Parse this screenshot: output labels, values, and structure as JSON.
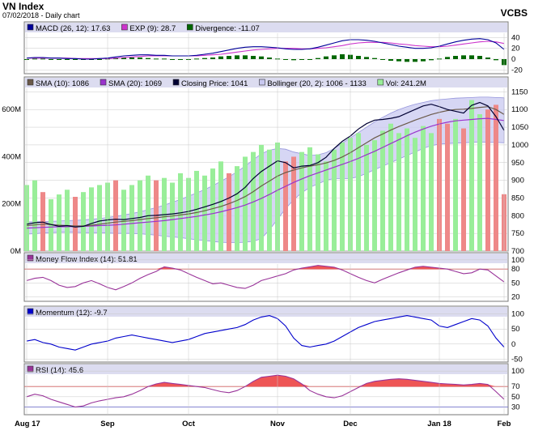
{
  "header": {
    "title": "VN Index",
    "subtitle": "07/02/2018 - Daily chart",
    "source": "VCBS"
  },
  "colors": {
    "background": "#ffffff",
    "legend_band": "#dcdcf0",
    "grid": "#c8c8c8",
    "price": "#000033",
    "sma10": "#6b5a4a",
    "sma20": "#9933cc",
    "bollinger_fill": "#c8c8f0",
    "bollinger_line": "#9696dc",
    "vol_up": "#99ee99",
    "vol_down": "#ee8888",
    "macd": "#000099",
    "exp": "#cc33cc",
    "divergence": "#006600",
    "mfi_line": "#993399",
    "mfi_fill": "#ee5555",
    "mfi_ref": "#cc6666",
    "momentum": "#0000cc",
    "rsi_line": "#993399",
    "rsi_fill": "#ee5555",
    "rsi_ref70": "#cc6666",
    "rsi_ref30": "#6666cc"
  },
  "chart_data": {
    "type": "line",
    "x_labels": [
      "Aug 17",
      "Sep",
      "Oct",
      "Nov",
      "Dec",
      "Jan 18",
      "Feb"
    ],
    "panels": {
      "macd": {
        "legend": [
          {
            "key": "macd",
            "text": "MACD (26, 12): 17.63"
          },
          {
            "key": "exp",
            "text": "EXP (9): 28.7"
          },
          {
            "key": "divergence",
            "text": "Divergence: -11.07"
          }
        ],
        "y_ticks": [
          "40",
          "20",
          "0",
          "-20"
        ],
        "ylim": [
          -27,
          48
        ],
        "macd": [
          2,
          3,
          3,
          2,
          2,
          1,
          1,
          0,
          0,
          1,
          2,
          4,
          6,
          7,
          8,
          8,
          7,
          7,
          6,
          6,
          6,
          7,
          9,
          11,
          14,
          17,
          20,
          22,
          23,
          23,
          22,
          21,
          19,
          18,
          18,
          19,
          22,
          26,
          30,
          34,
          36,
          36,
          35,
          33,
          30,
          27,
          24,
          22,
          20,
          20,
          21,
          24,
          28,
          32,
          35,
          37,
          38,
          36,
          30,
          18
        ],
        "exp": [
          2,
          2,
          2,
          2,
          2,
          2,
          1,
          1,
          1,
          1,
          1,
          2,
          3,
          4,
          5,
          6,
          6,
          6,
          6,
          6,
          6,
          6,
          7,
          8,
          9,
          11,
          13,
          15,
          17,
          18,
          19,
          20,
          20,
          20,
          19,
          19,
          20,
          21,
          23,
          25,
          28,
          30,
          31,
          31,
          31,
          30,
          28,
          27,
          25,
          24,
          23,
          23,
          24,
          26,
          28,
          30,
          32,
          33,
          32,
          29
        ],
        "divergence": [
          0,
          1,
          1,
          0,
          0,
          -1,
          0,
          -1,
          -1,
          0,
          1,
          2,
          3,
          3,
          3,
          2,
          1,
          1,
          0,
          0,
          0,
          1,
          2,
          3,
          5,
          6,
          7,
          7,
          6,
          5,
          3,
          1,
          -1,
          -2,
          -1,
          0,
          2,
          5,
          7,
          9,
          8,
          6,
          4,
          2,
          -1,
          -3,
          -4,
          -5,
          -5,
          -4,
          -2,
          1,
          4,
          6,
          7,
          7,
          6,
          3,
          -2,
          -11
        ]
      },
      "price": {
        "legend": [
          {
            "key": "sma10",
            "text": "SMA (10): 1086"
          },
          {
            "key": "sma20",
            "text": "SMA (20): 1069"
          },
          {
            "key": "price",
            "text": "Closing Price: 1041"
          },
          {
            "key": "bollinger",
            "text": "Bollinger (20, 2): 1006 - 1133"
          },
          {
            "key": "vol",
            "text": "Vol: 241.2M"
          }
        ],
        "y_ticks": [
          "1150",
          "1100",
          "1050",
          "1000",
          "950",
          "900",
          "850",
          "800",
          "750",
          "700"
        ],
        "ylim": [
          700,
          1160
        ],
        "vol_ticks": [
          "600M",
          "400M",
          "200M",
          "0M"
        ],
        "vol_lim": [
          0,
          690
        ],
        "close": [
          776,
          780,
          782,
          775,
          770,
          772,
          768,
          770,
          778,
          785,
          788,
          790,
          789,
          792,
          795,
          800,
          801,
          803,
          805,
          808,
          812,
          818,
          825,
          832,
          840,
          850,
          862,
          880,
          905,
          925,
          940,
          955,
          950,
          935,
          940,
          942,
          950,
          965,
          990,
          1010,
          1025,
          1045,
          1060,
          1070,
          1072,
          1075,
          1080,
          1090,
          1100,
          1110,
          1115,
          1108,
          1100,
          1095,
          1090,
          1112,
          1120,
          1110,
          1080,
          1041
        ],
        "sma10": [
          772,
          774,
          776,
          775,
          773,
          772,
          771,
          771,
          773,
          776,
          779,
          782,
          784,
          786,
          789,
          792,
          794,
          797,
          799,
          802,
          805,
          809,
          814,
          820,
          826,
          834,
          843,
          854,
          868,
          884,
          898,
          912,
          922,
          929,
          935,
          940,
          944,
          949,
          956,
          966,
          978,
          992,
          1006,
          1020,
          1031,
          1042,
          1052,
          1061,
          1070,
          1078,
          1086,
          1092,
          1097,
          1100,
          1101,
          1103,
          1106,
          1108,
          1100,
          1086
        ],
        "sma20": [
          765,
          766,
          767,
          768,
          769,
          769,
          770,
          770,
          771,
          772,
          773,
          774,
          776,
          778,
          780,
          782,
          784,
          786,
          789,
          792,
          795,
          798,
          802,
          806,
          811,
          817,
          823,
          830,
          839,
          849,
          860,
          872,
          883,
          894,
          904,
          913,
          921,
          929,
          937,
          945,
          953,
          962,
          972,
          982,
          993,
          1004,
          1015,
          1026,
          1036,
          1045,
          1053,
          1059,
          1064,
          1068,
          1070,
          1072,
          1074,
          1075,
          1072,
          1069
        ],
        "boll_upper": [
          782,
          783,
          783,
          784,
          785,
          786,
          787,
          788,
          790,
          792,
          795,
          798,
          802,
          806,
          811,
          817,
          823,
          830,
          838,
          846,
          855,
          864,
          874,
          885,
          897,
          910,
          924,
          940,
          958,
          975,
          985,
          990,
          988,
          980,
          975,
          970,
          972,
          978,
          990,
          1005,
          1020,
          1035,
          1050,
          1065,
          1078,
          1090,
          1100,
          1108,
          1115,
          1120,
          1125,
          1128,
          1130,
          1132,
          1133,
          1134,
          1135,
          1135,
          1134,
          1133
        ],
        "boll_lower": [
          748,
          749,
          751,
          752,
          753,
          753,
          753,
          752,
          752,
          752,
          751,
          750,
          750,
          750,
          749,
          747,
          745,
          742,
          740,
          738,
          735,
          732,
          730,
          727,
          725,
          724,
          724,
          725,
          728,
          735,
          760,
          790,
          820,
          845,
          865,
          880,
          890,
          900,
          905,
          905,
          905,
          910,
          920,
          930,
          940,
          950,
          960,
          970,
          980,
          990,
          998,
          1002,
          1004,
          1005,
          1006,
          1007,
          1008,
          1007,
          1007,
          1006
        ],
        "volume": [
          280,
          300,
          250,
          220,
          240,
          260,
          230,
          250,
          270,
          280,
          290,
          300,
          260,
          280,
          300,
          320,
          300,
          310,
          290,
          330,
          310,
          340,
          320,
          350,
          380,
          330,
          360,
          400,
          420,
          450,
          430,
          460,
          380,
          400,
          420,
          440,
          410,
          380,
          430,
          460,
          480,
          500,
          450,
          470,
          510,
          540,
          500,
          520,
          480,
          530,
          500,
          560,
          540,
          560,
          520,
          640,
          580,
          600,
          620,
          241
        ],
        "vol_up": [
          true,
          true,
          false,
          true,
          true,
          true,
          false,
          true,
          true,
          true,
          true,
          false,
          true,
          true,
          true,
          true,
          false,
          true,
          true,
          true,
          true,
          true,
          true,
          true,
          true,
          false,
          true,
          true,
          true,
          true,
          true,
          true,
          false,
          false,
          true,
          true,
          true,
          true,
          true,
          true,
          true,
          true,
          true,
          true,
          true,
          true,
          true,
          true,
          true,
          true,
          true,
          false,
          false,
          true,
          false,
          true,
          true,
          false,
          false,
          false
        ]
      },
      "mfi": {
        "legend": [
          {
            "key": "mfi_line",
            "text": "Money Flow Index (14): 51.81"
          }
        ],
        "y_ticks": [
          "100",
          "80",
          "50",
          "20"
        ],
        "ylim": [
          10,
          105
        ],
        "ref_line": 80,
        "values": [
          55,
          60,
          62,
          55,
          45,
          40,
          42,
          50,
          55,
          48,
          40,
          35,
          42,
          50,
          60,
          68,
          75,
          85,
          82,
          78,
          70,
          62,
          55,
          48,
          50,
          45,
          40,
          38,
          45,
          55,
          60,
          65,
          70,
          78,
          82,
          85,
          88,
          86,
          84,
          78,
          70,
          62,
          55,
          50,
          58,
          65,
          72,
          78,
          84,
          86,
          84,
          82,
          80,
          75,
          70,
          72,
          80,
          78,
          65,
          52
        ]
      },
      "momentum": {
        "legend": [
          {
            "key": "momentum",
            "text": "Momentum (12): -9.7"
          }
        ],
        "y_ticks": [
          "100",
          "50",
          "0",
          "-50"
        ],
        "ylim": [
          -60,
          110
        ],
        "values": [
          10,
          15,
          5,
          0,
          -10,
          -15,
          -20,
          -10,
          0,
          5,
          10,
          20,
          25,
          30,
          25,
          20,
          15,
          10,
          5,
          10,
          15,
          25,
          35,
          40,
          45,
          50,
          55,
          65,
          80,
          90,
          95,
          85,
          60,
          20,
          -5,
          -10,
          -5,
          0,
          10,
          25,
          40,
          55,
          65,
          75,
          80,
          85,
          90,
          95,
          90,
          85,
          80,
          60,
          55,
          65,
          75,
          85,
          80,
          60,
          20,
          -10
        ]
      },
      "rsi": {
        "legend": [
          {
            "key": "rsi_line",
            "text": "RSI (14): 45.6"
          }
        ],
        "y_ticks": [
          "100",
          "70",
          "50",
          "30"
        ],
        "ylim": [
          15,
          105
        ],
        "ref_lines": [
          70,
          30
        ],
        "values": [
          50,
          55,
          52,
          45,
          40,
          35,
          30,
          32,
          38,
          42,
          45,
          48,
          50,
          55,
          62,
          70,
          75,
          78,
          76,
          74,
          72,
          70,
          68,
          64,
          60,
          58,
          62,
          70,
          80,
          88,
          90,
          92,
          90,
          85,
          75,
          62,
          55,
          50,
          48,
          52,
          60,
          68,
          76,
          80,
          82,
          84,
          85,
          84,
          82,
          80,
          78,
          76,
          75,
          74,
          73,
          74,
          76,
          74,
          60,
          45
        ]
      }
    }
  }
}
